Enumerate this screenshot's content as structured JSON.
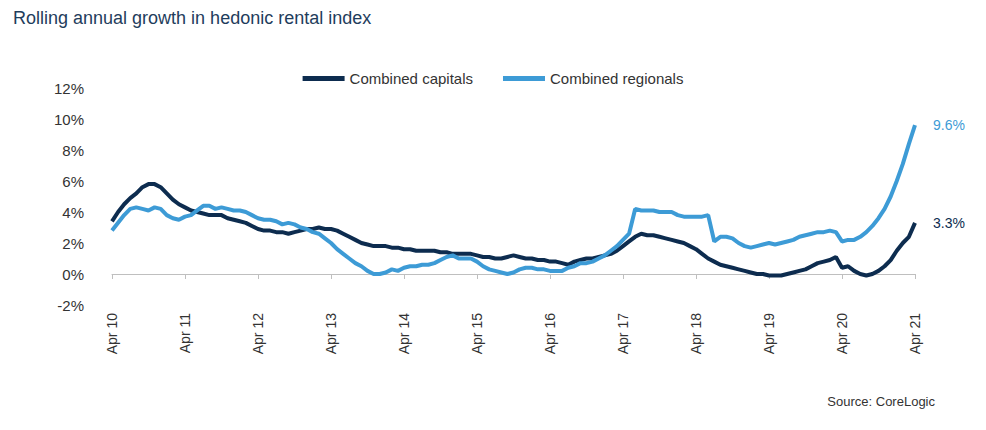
{
  "chart_data": {
    "type": "line",
    "title": "Rolling annual growth in hedonic rental index",
    "caption": "Source: CoreLogic",
    "categories": [
      "Apr 10",
      null,
      null,
      null,
      null,
      null,
      null,
      null,
      null,
      null,
      null,
      null,
      "Apr 11",
      null,
      null,
      null,
      null,
      null,
      null,
      null,
      null,
      null,
      null,
      null,
      "Apr 12",
      null,
      null,
      null,
      null,
      null,
      null,
      null,
      null,
      null,
      null,
      null,
      "Apr 13",
      null,
      null,
      null,
      null,
      null,
      null,
      null,
      null,
      null,
      null,
      null,
      "Apr 14",
      null,
      null,
      null,
      null,
      null,
      null,
      null,
      null,
      null,
      null,
      null,
      "Apr 15",
      null,
      null,
      null,
      null,
      null,
      null,
      null,
      null,
      null,
      null,
      null,
      "Apr 16",
      null,
      null,
      null,
      null,
      null,
      null,
      null,
      null,
      null,
      null,
      null,
      "Apr 17",
      null,
      null,
      null,
      null,
      null,
      null,
      null,
      null,
      null,
      null,
      null,
      "Apr 18",
      null,
      null,
      null,
      null,
      null,
      null,
      null,
      null,
      null,
      null,
      null,
      "Apr 19",
      null,
      null,
      null,
      null,
      null,
      null,
      null,
      null,
      null,
      null,
      null,
      "Apr 20",
      null,
      null,
      null,
      null,
      null,
      null,
      null,
      null,
      null,
      null,
      null,
      "Apr 21"
    ],
    "series": [
      {
        "name": "Combined capitals",
        "color": "#0d2c4f",
        "line_style": "solid",
        "values": [
          3.4,
          4.0,
          4.5,
          4.9,
          5.2,
          5.6,
          5.8,
          5.8,
          5.6,
          5.2,
          4.8,
          4.5,
          4.3,
          4.1,
          4.0,
          3.9,
          3.8,
          3.8,
          3.8,
          3.6,
          3.5,
          3.4,
          3.3,
          3.1,
          2.9,
          2.8,
          2.8,
          2.7,
          2.7,
          2.6,
          2.7,
          2.8,
          2.9,
          2.9,
          3.0,
          2.9,
          2.9,
          2.8,
          2.6,
          2.4,
          2.2,
          2.0,
          1.9,
          1.8,
          1.8,
          1.8,
          1.7,
          1.7,
          1.6,
          1.6,
          1.5,
          1.5,
          1.5,
          1.5,
          1.4,
          1.4,
          1.3,
          1.3,
          1.3,
          1.3,
          1.2,
          1.1,
          1.1,
          1.0,
          1.0,
          1.1,
          1.2,
          1.1,
          1.0,
          1.0,
          0.9,
          0.9,
          0.8,
          0.8,
          0.7,
          0.6,
          0.8,
          0.9,
          1.0,
          1.0,
          1.1,
          1.2,
          1.3,
          1.5,
          1.8,
          2.1,
          2.4,
          2.6,
          2.5,
          2.5,
          2.4,
          2.3,
          2.2,
          2.1,
          2.0,
          1.8,
          1.6,
          1.3,
          1.0,
          0.8,
          0.6,
          0.5,
          0.4,
          0.3,
          0.2,
          0.1,
          0.0,
          0.0,
          -0.1,
          -0.1,
          -0.1,
          0.0,
          0.1,
          0.2,
          0.3,
          0.5,
          0.7,
          0.8,
          0.9,
          1.1,
          0.4,
          0.5,
          0.2,
          0.0,
          -0.1,
          0.0,
          0.2,
          0.5,
          0.9,
          1.5,
          2.0,
          2.4,
          3.3
        ]
      },
      {
        "name": "Combined regionals",
        "color": "#3d9bd6",
        "line_style": "solid",
        "values": [
          2.8,
          3.3,
          3.8,
          4.2,
          4.3,
          4.2,
          4.1,
          4.3,
          4.2,
          3.8,
          3.6,
          3.5,
          3.7,
          3.8,
          4.1,
          4.4,
          4.4,
          4.2,
          4.3,
          4.2,
          4.1,
          4.1,
          4.0,
          3.8,
          3.6,
          3.5,
          3.5,
          3.4,
          3.2,
          3.3,
          3.2,
          3.0,
          2.9,
          2.7,
          2.6,
          2.3,
          2.0,
          1.6,
          1.3,
          1.0,
          0.7,
          0.5,
          0.2,
          0.0,
          0.0,
          0.1,
          0.3,
          0.2,
          0.4,
          0.5,
          0.5,
          0.6,
          0.6,
          0.7,
          0.9,
          1.1,
          1.2,
          1.0,
          1.0,
          1.0,
          0.8,
          0.5,
          0.3,
          0.2,
          0.1,
          0.0,
          0.1,
          0.3,
          0.4,
          0.4,
          0.3,
          0.3,
          0.2,
          0.2,
          0.2,
          0.4,
          0.5,
          0.7,
          0.7,
          0.8,
          1.0,
          1.2,
          1.5,
          1.8,
          2.2,
          2.6,
          4.2,
          4.1,
          4.1,
          4.1,
          4.0,
          4.0,
          4.0,
          3.8,
          3.7,
          3.7,
          3.7,
          3.7,
          3.8,
          2.1,
          2.4,
          2.4,
          2.3,
          2.0,
          1.8,
          1.7,
          1.8,
          1.9,
          2.0,
          1.9,
          2.0,
          2.1,
          2.2,
          2.4,
          2.5,
          2.6,
          2.7,
          2.7,
          2.8,
          2.7,
          2.1,
          2.2,
          2.2,
          2.4,
          2.7,
          3.1,
          3.6,
          4.2,
          5.0,
          6.0,
          7.1,
          8.4,
          9.6
        ]
      }
    ],
    "annotations": [
      {
        "series": "Combined capitals",
        "text": "3.3%"
      },
      {
        "series": "Combined regionals",
        "text": "9.6%"
      }
    ],
    "ylim": [
      -2,
      12
    ],
    "yticks": [
      {
        "value": -2,
        "label": "-2%"
      },
      {
        "value": 0,
        "label": "0%"
      },
      {
        "value": 2,
        "label": "2%"
      },
      {
        "value": 4,
        "label": "4%"
      },
      {
        "value": 6,
        "label": "6%"
      },
      {
        "value": 8,
        "label": "8%"
      },
      {
        "value": 10,
        "label": "10%"
      },
      {
        "value": 12,
        "label": "12%"
      }
    ],
    "grid": false,
    "legend": "top"
  }
}
